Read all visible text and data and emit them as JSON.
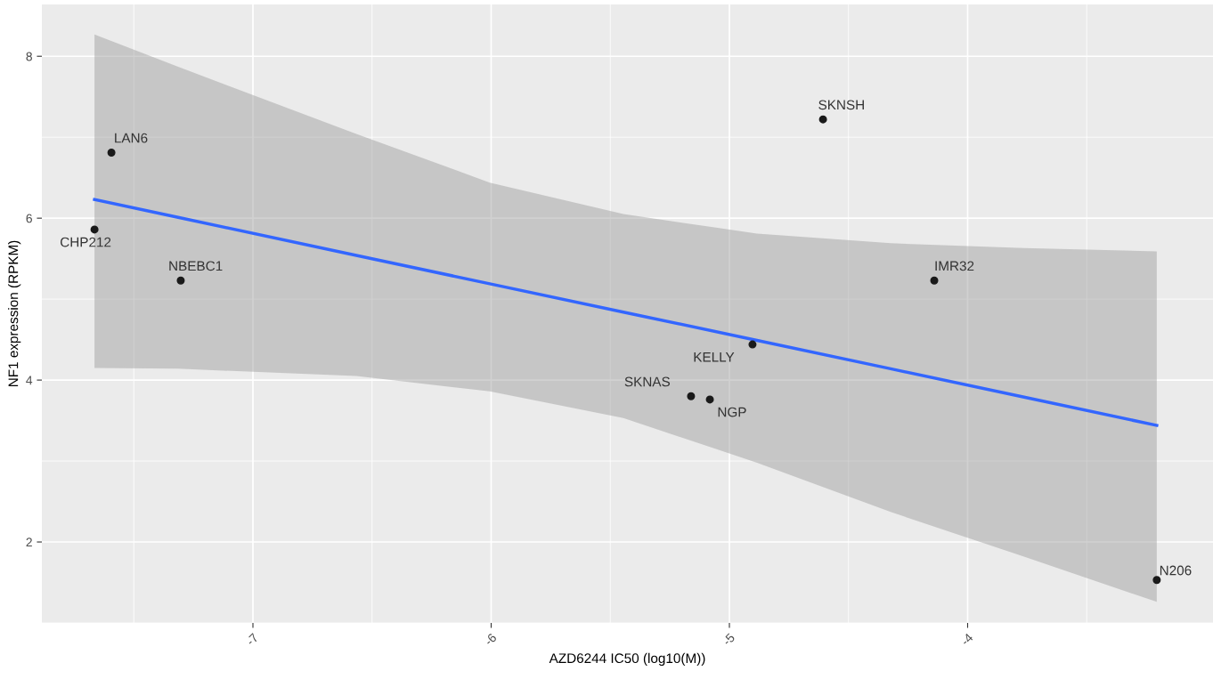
{
  "chart_data": {
    "type": "scatter",
    "xlabel": "AZD6244 IC50 (log10(M))",
    "ylabel": "NF1 expression (RPKM)",
    "xlim": [
      -7.886,
      -2.97
    ],
    "ylim": [
      1.0,
      8.64
    ],
    "xticks": [
      -7,
      -6,
      -5,
      -4
    ],
    "yticks": [
      2,
      4,
      6,
      8
    ],
    "grid": true,
    "series": [
      {
        "marker": "circle",
        "color": "#1a1a1a",
        "x": [
          -7.665,
          -7.594,
          -7.303,
          -5.161,
          -5.082,
          -4.903,
          -4.607,
          -4.14,
          -3.206
        ],
        "values": [
          5.86,
          6.81,
          5.23,
          3.8,
          3.76,
          4.44,
          7.22,
          5.23,
          1.53
        ]
      },
      {
        "type": "line",
        "color": "#3366ff",
        "x": [
          -7.665,
          -7.314,
          -6.566,
          -6.006,
          -5.445,
          -4.884,
          -4.323,
          -3.763,
          -3.206
        ],
        "values": [
          6.23,
          6.01,
          5.54,
          5.19,
          4.84,
          4.49,
          4.14,
          3.79,
          3.44
        ],
        "lower": [
          4.15,
          4.14,
          4.05,
          3.86,
          3.53,
          2.98,
          2.37,
          1.82,
          1.26
        ],
        "upper": [
          8.27,
          7.87,
          7.04,
          6.44,
          6.05,
          5.81,
          5.69,
          5.63,
          5.59
        ]
      }
    ],
    "annotations": [
      {
        "text": "CHP212",
        "x": -7.665,
        "y": 5.86
      },
      {
        "text": "LAN6",
        "x": -7.594,
        "y": 6.81
      },
      {
        "text": "NBEBC1",
        "x": -7.303,
        "y": 5.23
      },
      {
        "text": "SKNAS",
        "x": -5.161,
        "y": 3.8
      },
      {
        "text": "NGP",
        "x": -5.082,
        "y": 3.76
      },
      {
        "text": "KELLY",
        "x": -4.903,
        "y": 4.44
      },
      {
        "text": "SKNSH",
        "x": -4.607,
        "y": 7.22
      },
      {
        "text": "IMR32",
        "x": -4.14,
        "y": 5.23
      },
      {
        "text": "N206",
        "x": -3.206,
        "y": 1.53
      }
    ]
  }
}
